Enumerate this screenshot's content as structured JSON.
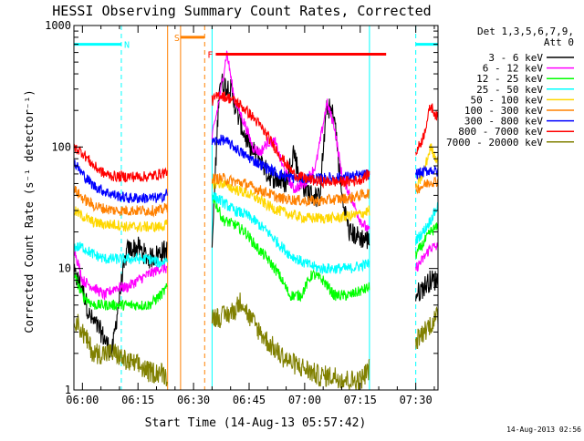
{
  "chart_data": {
    "type": "line",
    "title": "HESSI Observing Summary Count Rates, Corrected",
    "xlabel": "Start Time (14-Aug-13 05:57:42)",
    "ylabel": "Corrected Count Rate (s⁻¹ detector⁻¹)",
    "yscale": "log",
    "ylim": [
      1,
      1000
    ],
    "xlim_minutes": [
      -2.3,
      96
    ],
    "x_ticks": [
      {
        "m": 0,
        "label": "06:00"
      },
      {
        "m": 15,
        "label": "06:15"
      },
      {
        "m": 30,
        "label": "06:30"
      },
      {
        "m": 45,
        "label": "06:45"
      },
      {
        "m": 60,
        "label": "07:00"
      },
      {
        "m": 75,
        "label": "07:15"
      },
      {
        "m": 90,
        "label": "07:30"
      }
    ],
    "y_ticks": [
      {
        "v": 1,
        "label": "1"
      },
      {
        "v": 10,
        "label": "10"
      },
      {
        "v": 100,
        "label": "100"
      },
      {
        "v": 1000,
        "label": "1000"
      }
    ],
    "legend_title": [
      "Det 1,3,5,6,7,9,",
      "Att 0"
    ],
    "legend_position": "right",
    "timestamp": "14-Aug-2013 02:56",
    "gaps": [
      [
        23,
        35
      ],
      [
        77.5,
        90
      ]
    ],
    "series": [
      {
        "name": "3 - 6 keV",
        "color": "#000000",
        "min": 1,
        "pts": [
          [
            -2.3,
            9
          ],
          [
            0,
            7
          ],
          [
            2,
            4
          ],
          [
            5,
            3
          ],
          [
            8,
            2
          ],
          [
            10,
            6
          ],
          [
            12,
            14
          ],
          [
            15,
            15
          ],
          [
            18,
            12
          ],
          [
            22,
            14
          ],
          [
            23,
            14
          ],
          [
            35,
            15
          ],
          [
            37,
            350
          ],
          [
            40,
            300
          ],
          [
            42,
            180
          ],
          [
            45,
            100
          ],
          [
            48,
            80
          ],
          [
            50,
            60
          ],
          [
            52,
            55
          ],
          [
            55,
            50
          ],
          [
            57,
            95
          ],
          [
            59,
            50
          ],
          [
            62,
            40
          ],
          [
            64,
            38
          ],
          [
            66,
            220
          ],
          [
            68,
            180
          ],
          [
            70,
            40
          ],
          [
            72,
            20
          ],
          [
            75,
            18
          ],
          [
            77.5,
            17
          ],
          [
            90,
            6
          ],
          [
            92,
            7
          ],
          [
            94,
            8
          ],
          [
            96,
            8
          ]
        ]
      },
      {
        "name": "6 - 12 keV",
        "color": "#ff00ff",
        "pts": [
          [
            -2.3,
            15
          ],
          [
            0,
            8
          ],
          [
            3,
            7
          ],
          [
            6,
            6
          ],
          [
            9,
            7
          ],
          [
            12,
            7
          ],
          [
            15,
            8
          ],
          [
            18,
            9
          ],
          [
            21,
            10
          ],
          [
            23,
            10
          ],
          [
            35,
            120
          ],
          [
            37,
            250
          ],
          [
            39,
            600
          ],
          [
            41,
            250
          ],
          [
            44,
            150
          ],
          [
            46,
            100
          ],
          [
            48,
            90
          ],
          [
            50,
            110
          ],
          [
            52,
            110
          ],
          [
            54,
            70
          ],
          [
            57,
            45
          ],
          [
            60,
            50
          ],
          [
            63,
            70
          ],
          [
            66,
            230
          ],
          [
            68,
            150
          ],
          [
            70,
            60
          ],
          [
            73,
            35
          ],
          [
            75,
            25
          ],
          [
            77.5,
            20
          ],
          [
            90,
            10
          ],
          [
            92,
            12
          ],
          [
            94,
            15
          ],
          [
            96,
            15
          ]
        ]
      },
      {
        "name": "12 - 25 keV",
        "color": "#00ff00",
        "pts": [
          [
            -2.3,
            9
          ],
          [
            0,
            6
          ],
          [
            3,
            5
          ],
          [
            6,
            5
          ],
          [
            9,
            5
          ],
          [
            12,
            5
          ],
          [
            15,
            5
          ],
          [
            18,
            5
          ],
          [
            21,
            6
          ],
          [
            23,
            7
          ],
          [
            35,
            40
          ],
          [
            38,
            25
          ],
          [
            41,
            23
          ],
          [
            44,
            20
          ],
          [
            47,
            15
          ],
          [
            50,
            12
          ],
          [
            53,
            9
          ],
          [
            56,
            6
          ],
          [
            59,
            6
          ],
          [
            62,
            9
          ],
          [
            65,
            8
          ],
          [
            68,
            6
          ],
          [
            72,
            6
          ],
          [
            75,
            6.5
          ],
          [
            77.5,
            7
          ],
          [
            90,
            13
          ],
          [
            92,
            16
          ],
          [
            94,
            20
          ],
          [
            96,
            22
          ]
        ]
      },
      {
        "name": "25 - 50 keV",
        "color": "#00ffff",
        "pts": [
          [
            -2.3,
            15
          ],
          [
            0,
            15
          ],
          [
            3,
            13
          ],
          [
            6,
            12
          ],
          [
            9,
            12
          ],
          [
            12,
            12
          ],
          [
            15,
            12
          ],
          [
            18,
            12
          ],
          [
            21,
            11
          ],
          [
            23,
            12
          ],
          [
            35,
            40
          ],
          [
            38,
            35
          ],
          [
            41,
            30
          ],
          [
            44,
            28
          ],
          [
            47,
            24
          ],
          [
            50,
            20
          ],
          [
            53,
            16
          ],
          [
            56,
            13
          ],
          [
            60,
            11
          ],
          [
            64,
            10
          ],
          [
            68,
            10
          ],
          [
            72,
            10
          ],
          [
            75,
            10.5
          ],
          [
            77.5,
            11
          ],
          [
            90,
            17
          ],
          [
            92,
            20
          ],
          [
            94,
            25
          ],
          [
            96,
            33
          ]
        ]
      },
      {
        "name": "50 - 100 keV",
        "color": "#ffd700",
        "pts": [
          [
            -2.3,
            30
          ],
          [
            0,
            27
          ],
          [
            3,
            24
          ],
          [
            6,
            23
          ],
          [
            9,
            23
          ],
          [
            12,
            22
          ],
          [
            15,
            22
          ],
          [
            18,
            22
          ],
          [
            21,
            22
          ],
          [
            23,
            23
          ],
          [
            35,
            50
          ],
          [
            38,
            50
          ],
          [
            41,
            45
          ],
          [
            44,
            42
          ],
          [
            47,
            38
          ],
          [
            50,
            33
          ],
          [
            53,
            30
          ],
          [
            56,
            28
          ],
          [
            60,
            26
          ],
          [
            64,
            26
          ],
          [
            68,
            26
          ],
          [
            72,
            27
          ],
          [
            75,
            28
          ],
          [
            77.5,
            30
          ],
          [
            90,
            45
          ],
          [
            92,
            60
          ],
          [
            94,
            100
          ],
          [
            96,
            75
          ]
        ]
      },
      {
        "name": "100 - 300 keV",
        "color": "#ff8000",
        "pts": [
          [
            -2.3,
            45
          ],
          [
            0,
            38
          ],
          [
            3,
            33
          ],
          [
            6,
            31
          ],
          [
            9,
            30
          ],
          [
            12,
            30
          ],
          [
            15,
            30
          ],
          [
            18,
            30
          ],
          [
            21,
            30
          ],
          [
            23,
            32
          ],
          [
            35,
            55
          ],
          [
            38,
            55
          ],
          [
            41,
            52
          ],
          [
            44,
            50
          ],
          [
            47,
            45
          ],
          [
            50,
            42
          ],
          [
            53,
            38
          ],
          [
            56,
            37
          ],
          [
            60,
            36
          ],
          [
            64,
            36
          ],
          [
            68,
            37
          ],
          [
            72,
            38
          ],
          [
            75,
            40
          ],
          [
            77.5,
            42
          ],
          [
            90,
            45
          ],
          [
            92,
            48
          ],
          [
            94,
            52
          ],
          [
            96,
            52
          ]
        ]
      },
      {
        "name": "300 - 800 keV",
        "color": "#0000ff",
        "pts": [
          [
            -2.3,
            75
          ],
          [
            0,
            60
          ],
          [
            3,
            48
          ],
          [
            6,
            43
          ],
          [
            9,
            40
          ],
          [
            12,
            38
          ],
          [
            15,
            38
          ],
          [
            18,
            38
          ],
          [
            21,
            38
          ],
          [
            23,
            42
          ],
          [
            35,
            110
          ],
          [
            38,
            115
          ],
          [
            41,
            100
          ],
          [
            44,
            85
          ],
          [
            47,
            75
          ],
          [
            50,
            67
          ],
          [
            53,
            60
          ],
          [
            56,
            56
          ],
          [
            60,
            55
          ],
          [
            64,
            55
          ],
          [
            68,
            56
          ],
          [
            72,
            57
          ],
          [
            75,
            58
          ],
          [
            77.5,
            60
          ],
          [
            90,
            60
          ],
          [
            92,
            62
          ],
          [
            94,
            65
          ],
          [
            96,
            62
          ]
        ]
      },
      {
        "name": "800 - 7000 keV",
        "color": "#ff0000",
        "pts": [
          [
            -2.3,
            100
          ],
          [
            0,
            90
          ],
          [
            3,
            70
          ],
          [
            6,
            60
          ],
          [
            9,
            57
          ],
          [
            12,
            57
          ],
          [
            15,
            57
          ],
          [
            18,
            57
          ],
          [
            21,
            60
          ],
          [
            23,
            63
          ],
          [
            35,
            240
          ],
          [
            37,
            270
          ],
          [
            40,
            250
          ],
          [
            42,
            230
          ],
          [
            45,
            190
          ],
          [
            48,
            150
          ],
          [
            51,
            110
          ],
          [
            54,
            80
          ],
          [
            57,
            60
          ],
          [
            60,
            55
          ],
          [
            64,
            52
          ],
          [
            68,
            52
          ],
          [
            72,
            52
          ],
          [
            75,
            54
          ],
          [
            77.5,
            60
          ],
          [
            90,
            90
          ],
          [
            92,
            120
          ],
          [
            94,
            220
          ],
          [
            96,
            170
          ]
        ]
      },
      {
        "name": "7000 - 20000 keV",
        "color": "#808000",
        "min": 1,
        "pts": [
          [
            -2.3,
            4
          ],
          [
            0,
            3
          ],
          [
            3,
            2
          ],
          [
            6,
            2
          ],
          [
            9,
            2
          ],
          [
            12,
            1.7
          ],
          [
            15,
            1.6
          ],
          [
            18,
            1.4
          ],
          [
            21,
            1.4
          ],
          [
            23,
            1.3
          ],
          [
            35,
            4
          ],
          [
            38,
            4
          ],
          [
            41,
            4.5
          ],
          [
            43,
            5.5
          ],
          [
            45,
            4
          ],
          [
            48,
            3
          ],
          [
            50,
            2.5
          ],
          [
            53,
            2
          ],
          [
            56,
            1.7
          ],
          [
            60,
            1.5
          ],
          [
            64,
            1.3
          ],
          [
            68,
            1.3
          ],
          [
            72,
            1.2
          ],
          [
            75,
            1.2
          ],
          [
            77.5,
            1.5
          ],
          [
            90,
            2.5
          ],
          [
            92,
            3
          ],
          [
            94,
            3.5
          ],
          [
            96,
            4
          ]
        ]
      }
    ],
    "flag_bars": [
      {
        "label": "N",
        "color": "#00ffff",
        "x1": -2.3,
        "x2": 10.5,
        "value": 700,
        "tick_at": 10.5,
        "label_at": 12
      },
      {
        "label": "",
        "color": "#00ffff",
        "x1": 90,
        "x2": 96,
        "value": 700,
        "tick_at": 90,
        "label_at": null
      },
      {
        "label": "S",
        "color": "#ff8000",
        "x1": 26.5,
        "x2": 33,
        "value": 800,
        "tick_at": 33,
        "label_at": 25.5
      },
      {
        "label": "F",
        "color": "#ff0000",
        "x1": 36,
        "x2": 82,
        "value": 580,
        "tick_at": null,
        "label_at": 34.5
      }
    ],
    "vertical_markers": [
      {
        "x": 10.5,
        "color": "#00ffff",
        "dashed": true
      },
      {
        "x": 23,
        "color": "#ff8000",
        "dashed": false
      },
      {
        "x": 26.5,
        "color": "#ff8000",
        "dashed": false
      },
      {
        "x": 33,
        "color": "#ff8000",
        "dashed": true
      },
      {
        "x": 35,
        "color": "#00ffff",
        "dashed": false
      },
      {
        "x": 77.5,
        "color": "#00ffff",
        "dashed": false
      },
      {
        "x": 90,
        "color": "#00ffff",
        "dashed": true
      }
    ]
  }
}
